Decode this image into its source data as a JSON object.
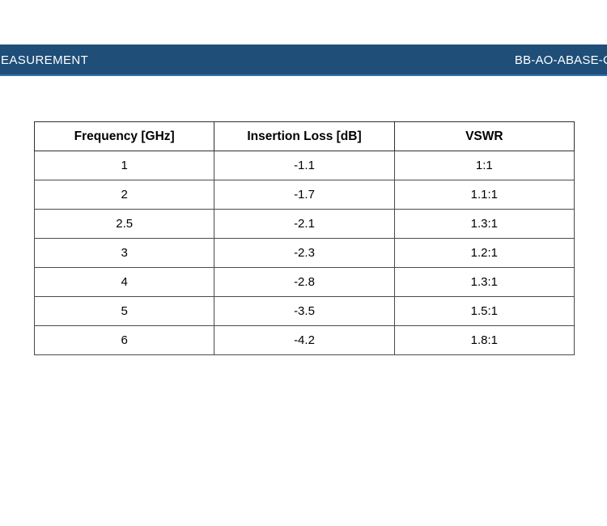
{
  "header": {
    "left_text": "EASUREMENT",
    "right_text": "BB-AO-ABASE-C",
    "bar_color": "#1F4E79",
    "bar_accent_color": "#2E74B5",
    "text_color": "#FFFFFF"
  },
  "table": {
    "columns": [
      "Frequency [GHz]",
      "Insertion Loss [dB]",
      "VSWR"
    ],
    "rows": [
      [
        "1",
        "-1.1",
        "1:1"
      ],
      [
        "2",
        "-1.7",
        "1.1:1"
      ],
      [
        "2.5",
        "-2.1",
        "1.3:1"
      ],
      [
        "3",
        "-2.3",
        "1.2:1"
      ],
      [
        "4",
        "-2.8",
        "1.3:1"
      ],
      [
        "5",
        "-3.5",
        "1.5:1"
      ],
      [
        "6",
        "-4.2",
        "1.8:1"
      ]
    ],
    "border_color": "#4a4a4a"
  }
}
